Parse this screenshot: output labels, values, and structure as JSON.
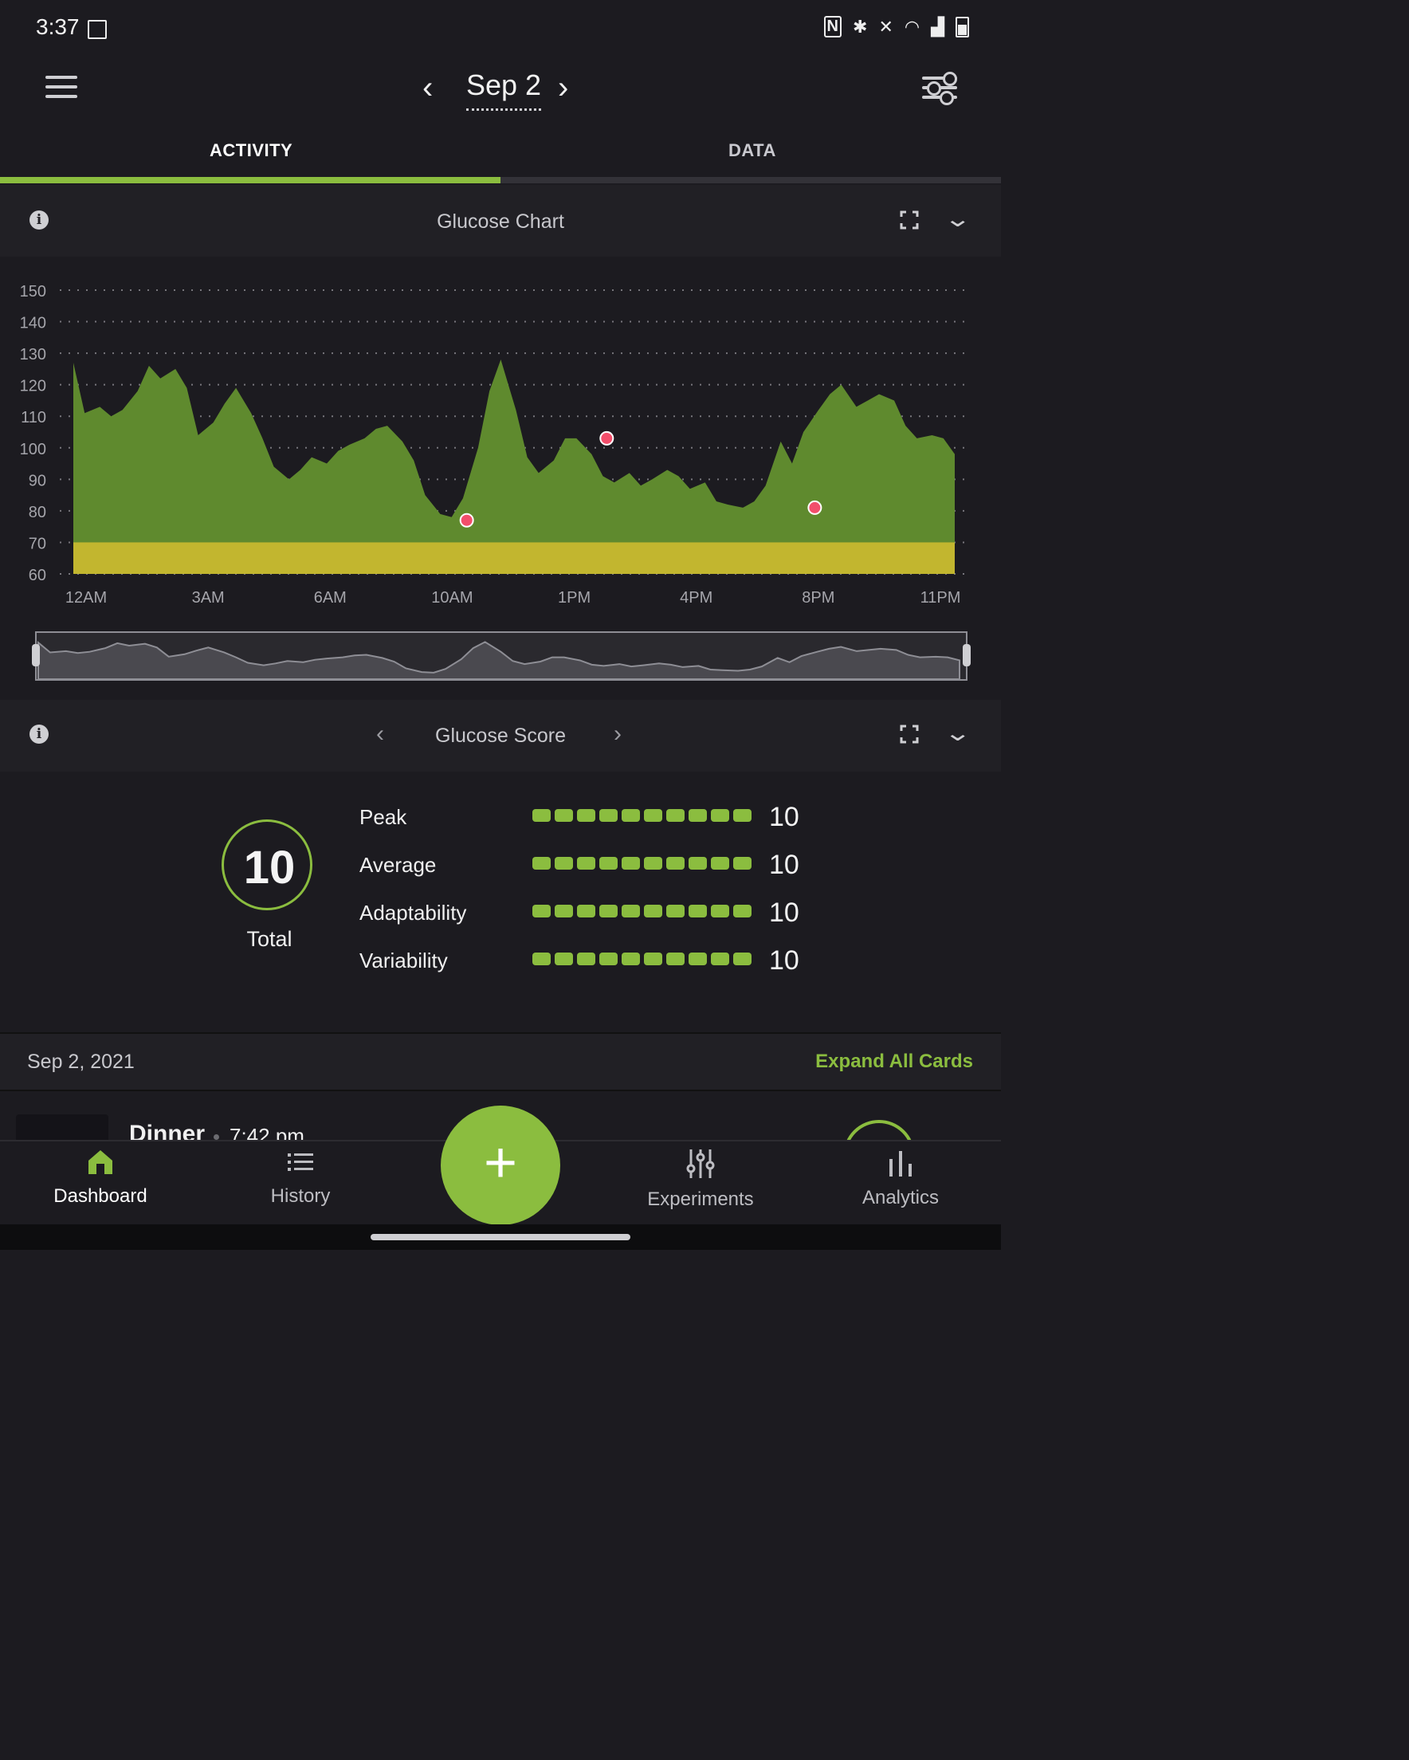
{
  "status_bar": {
    "time": "3:37",
    "icons": [
      "image-icon",
      "nfc-icon",
      "bluetooth-icon",
      "mute-icon",
      "wifi-icon",
      "signal-icon",
      "battery-icon"
    ]
  },
  "header": {
    "date": "Sep 2",
    "prev_glyph": "‹",
    "next_glyph": "›"
  },
  "tabs": [
    {
      "label": "ACTIVITY",
      "active": true
    },
    {
      "label": "DATA",
      "active": false
    }
  ],
  "glucose_chart": {
    "title": "Glucose Chart"
  },
  "chart_data": {
    "type": "area",
    "title": "",
    "xlabel": "",
    "ylabel": "",
    "ylim": [
      60,
      150
    ],
    "yticks": [
      150,
      140,
      130,
      120,
      110,
      100,
      90,
      80,
      70,
      60
    ],
    "xtick_labels": [
      "12AM",
      "3AM",
      "6AM",
      "10AM",
      "1PM",
      "4PM",
      "8PM",
      "11PM"
    ],
    "grid": "horizontal-dotted",
    "target_band": [
      60,
      70
    ],
    "fill_color": "#5f8a2e",
    "band_color": "#c2b62f",
    "series": [
      {
        "x_hours": [
          0,
          0.3,
          0.7,
          1.0,
          1.3,
          1.7,
          2.0,
          2.3,
          2.7,
          3.0,
          3.3,
          3.7,
          4.0,
          4.3,
          4.7,
          5.0,
          5.3,
          5.7,
          6.0,
          6.3,
          6.7,
          7.0,
          7.3,
          7.7,
          8.0,
          8.3,
          8.7,
          9.0,
          9.3,
          9.7,
          10.0,
          10.3,
          10.7,
          11.0,
          11.3,
          11.7,
          12.0,
          12.3,
          12.7,
          13.0,
          13.3,
          13.7,
          14.0,
          14.3,
          14.7,
          15.0,
          15.3,
          15.7,
          16.0,
          16.3,
          16.7,
          17.0,
          17.3,
          17.7,
          18.0,
          18.3,
          18.7,
          19.0,
          19.3,
          19.7,
          20.0,
          20.3,
          20.7,
          21.0,
          21.3,
          21.7,
          22.0,
          22.3,
          22.7,
          23.0,
          23.3
        ],
        "values": [
          127,
          111,
          113,
          110,
          112,
          118,
          126,
          122,
          125,
          119,
          104,
          108,
          114,
          119,
          111,
          103,
          94,
          90,
          93,
          97,
          95,
          99,
          101,
          103,
          106,
          107,
          102,
          96,
          85,
          79,
          78,
          84,
          100,
          118,
          128,
          112,
          97,
          92,
          96,
          103,
          103,
          98,
          91,
          89,
          92,
          88,
          90,
          93,
          91,
          87,
          89,
          83,
          82,
          81,
          83,
          88,
          102,
          95,
          105,
          112,
          117,
          120,
          113,
          115,
          117,
          115,
          107,
          103,
          104,
          103,
          98
        ]
      }
    ],
    "highlight_points": [
      {
        "x_hours": 10.4,
        "value": 77
      },
      {
        "x_hours": 14.1,
        "value": 103
      },
      {
        "x_hours": 19.6,
        "value": 81
      }
    ]
  },
  "glucose_score": {
    "title": "Glucose Score",
    "total": "10",
    "total_label": "Total",
    "metrics": [
      {
        "label": "Peak",
        "value": "10",
        "level": 10,
        "max": 10
      },
      {
        "label": "Average",
        "value": "10",
        "level": 10,
        "max": 10
      },
      {
        "label": "Adaptability",
        "value": "10",
        "level": 10,
        "max": 10
      },
      {
        "label": "Variability",
        "value": "10",
        "level": 10,
        "max": 10
      }
    ]
  },
  "day_section": {
    "date": "Sep 2, 2021",
    "expand_all": "Expand All Cards"
  },
  "entry_peek": {
    "title": "Dinner",
    "time": "7:42 pm"
  },
  "bottom_nav": {
    "items": [
      {
        "label": "Dashboard",
        "icon": "home-icon",
        "active": true
      },
      {
        "label": "History",
        "icon": "list-icon",
        "active": false
      },
      {
        "label": "Experiments",
        "icon": "sliders-icon",
        "active": false
      },
      {
        "label": "Analytics",
        "icon": "bar-chart-icon",
        "active": false
      }
    ],
    "fab_glyph": "+"
  },
  "colors": {
    "accent": "#8bbd3f",
    "background": "#1c1b20",
    "highlight_point": "#f24e6b"
  }
}
